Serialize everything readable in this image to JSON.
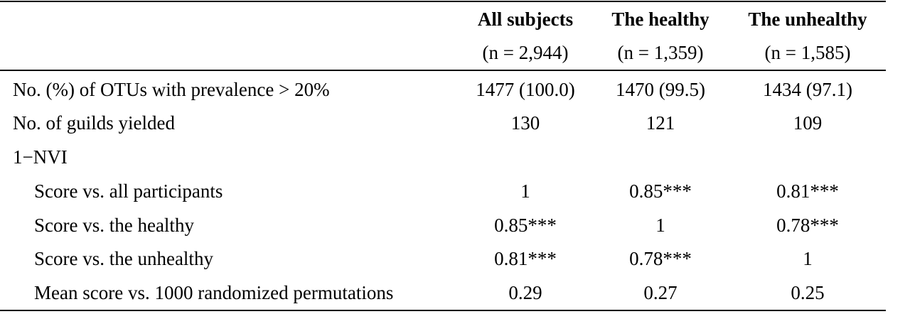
{
  "table": {
    "columns": [
      {
        "title": "All subjects",
        "n": "(n = 2,944)"
      },
      {
        "title": "The healthy",
        "n": "(n = 1,359)"
      },
      {
        "title": "The unhealthy",
        "n": "(n = 1,585)"
      }
    ],
    "rows": [
      {
        "label": "No. (%) of OTUs with prevalence > 20%",
        "values": [
          "1477 (100.0)",
          "1470 (99.5)",
          "1434 (97.1)"
        ]
      },
      {
        "label": "No. of guilds yielded",
        "values": [
          "130",
          "121",
          "109"
        ]
      },
      {
        "label": "1−NVI",
        "values": [
          "",
          "",
          ""
        ]
      },
      {
        "label": "Score vs. all participants",
        "values": [
          "1",
          "0.85***",
          "0.81***"
        ]
      },
      {
        "label": "Score vs. the healthy",
        "values": [
          "0.85***",
          "1",
          "0.78***"
        ]
      },
      {
        "label": "Score vs. the unhealthy",
        "values": [
          "0.81***",
          "0.78***",
          "1"
        ]
      },
      {
        "label": "Mean score vs. 1000 randomized permutations",
        "values": [
          "0.29",
          "0.27",
          "0.25"
        ]
      }
    ]
  }
}
